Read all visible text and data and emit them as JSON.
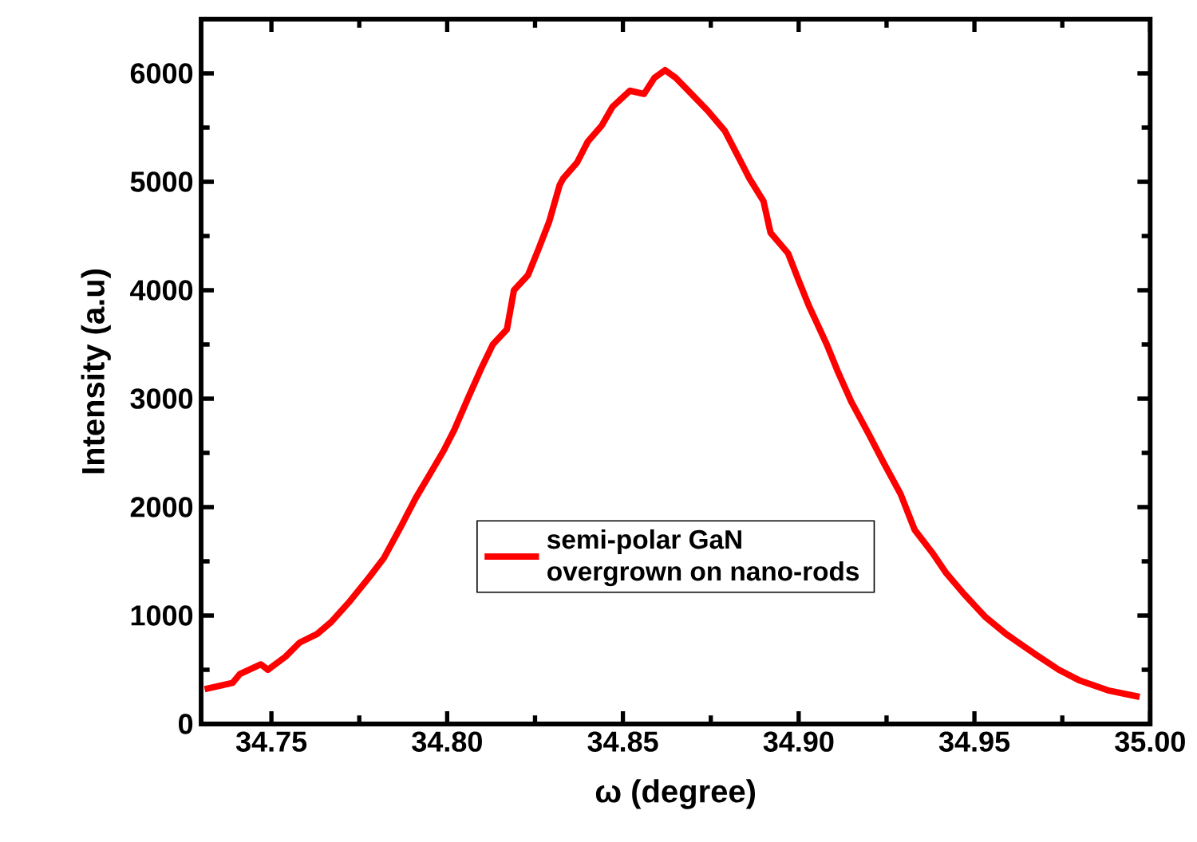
{
  "chart_data": {
    "type": "line",
    "xlabel": "ω (degree)",
    "ylabel": "Intensity (a.u)",
    "xlim": [
      34.73,
      35.0
    ],
    "ylim": [
      0,
      6500
    ],
    "xticks": [
      {
        "value": 34.75,
        "label": "34.75"
      },
      {
        "value": 34.8,
        "label": "34.80"
      },
      {
        "value": 34.85,
        "label": "34.85"
      },
      {
        "value": 34.9,
        "label": "34.90"
      },
      {
        "value": 34.95,
        "label": "34.95"
      },
      {
        "value": 35.0,
        "label": "35.00"
      }
    ],
    "yticks": [
      0,
      1000,
      2000,
      3000,
      4000,
      5000,
      6000
    ],
    "legend": "bottom",
    "grid": false,
    "marker": "none",
    "line_style": "solid",
    "series": [
      {
        "name": "semi-polar GaN overgrown on nano-rods",
        "color": "#ff0000",
        "x": [
          34.731,
          34.739,
          34.741,
          34.747,
          34.749,
          34.754,
          34.758,
          34.763,
          34.767,
          34.772,
          34.778,
          34.782,
          34.787,
          34.791,
          34.795,
          34.799,
          34.802,
          34.806,
          34.81,
          34.813,
          34.817,
          34.819,
          34.823,
          34.826,
          34.829,
          34.832,
          34.833,
          34.837,
          34.84,
          34.844,
          34.847,
          34.852,
          34.856,
          34.859,
          34.862,
          34.865,
          34.868,
          34.874,
          34.879,
          34.883,
          34.886,
          34.89,
          34.892,
          34.897,
          34.9,
          34.903,
          34.908,
          34.911,
          34.915,
          34.92,
          34.924,
          34.929,
          34.933,
          34.938,
          34.942,
          34.947,
          34.953,
          34.959,
          34.967,
          34.974,
          34.98,
          34.988,
          34.997
        ],
        "values": [
          320,
          380,
          460,
          550,
          500,
          620,
          750,
          830,
          940,
          1120,
          1360,
          1530,
          1830,
          2080,
          2300,
          2520,
          2710,
          3010,
          3300,
          3500,
          3640,
          4000,
          4140,
          4380,
          4630,
          4970,
          5030,
          5180,
          5370,
          5520,
          5690,
          5840,
          5810,
          5960,
          6030,
          5960,
          5860,
          5660,
          5470,
          5220,
          5030,
          4820,
          4530,
          4340,
          4090,
          3850,
          3500,
          3260,
          2970,
          2670,
          2420,
          2120,
          1790,
          1580,
          1390,
          1200,
          990,
          830,
          650,
          500,
          400,
          310,
          250
        ]
      }
    ]
  }
}
